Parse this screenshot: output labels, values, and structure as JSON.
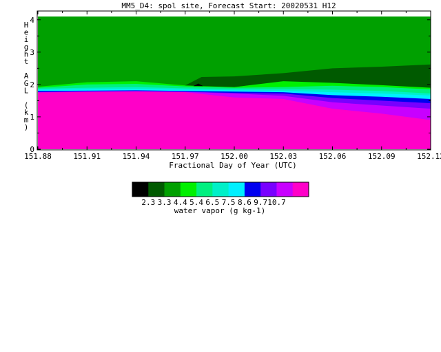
{
  "chart_data": {
    "type": "heatmap",
    "title": "MM5_D4: spol site,  Forecast Start: 20020531 H12",
    "xlabel": "Fractional Day of Year (UTC)",
    "ylabel": "Height AGL (km)",
    "xlim": [
      151.88,
      152.12
    ],
    "ylim": [
      0,
      4.25
    ],
    "x_ticks": [
      "151.88",
      "151.91",
      "151.94",
      "151.97",
      "152.00",
      "152.03",
      "152.06",
      "152.09",
      "152.12"
    ],
    "y_ticks": [
      "0",
      "1",
      "2",
      "3",
      "4"
    ],
    "x_times": [
      151.88,
      151.91,
      151.94,
      151.97,
      152.0,
      152.03,
      152.06,
      152.09,
      152.12
    ],
    "colorbar": {
      "label": "water vapor (g kg-1)",
      "ticks": [
        "2.3",
        "3.3",
        "4.4",
        "5.4",
        "6.5",
        "7.5",
        "8.6",
        "9.7",
        "10.7"
      ],
      "colors": [
        "#000000",
        "#005a00",
        "#00a000",
        "#00f000",
        "#00f080",
        "#00f0c8",
        "#00f0ff",
        "#0000f0",
        "#7800ff",
        "#c800ff",
        "#ff00c8"
      ]
    },
    "layers": [
      {
        "level": "9.7–10.7",
        "color": "#ff00c8",
        "top_km": [
          1.75,
          1.77,
          1.78,
          1.76,
          1.6,
          1.55,
          1.25,
          1.1,
          0.9
        ]
      },
      {
        "level": "8.6–9.7",
        "color": "#c800ff",
        "top_km": [
          1.76,
          1.78,
          1.79,
          1.77,
          1.72,
          1.65,
          1.45,
          1.35,
          1.25
        ]
      },
      {
        "level": "7.5–8.6",
        "color": "#7800ff",
        "top_km": [
          1.77,
          1.79,
          1.8,
          1.78,
          1.74,
          1.72,
          1.58,
          1.5,
          1.42
        ]
      },
      {
        "level": "6.5–7.5",
        "color": "#0000f0",
        "top_km": [
          1.8,
          1.81,
          1.82,
          1.8,
          1.78,
          1.76,
          1.67,
          1.62,
          1.55
        ]
      },
      {
        "level": "5.4–6.5",
        "color": "#00f0ff",
        "top_km": [
          1.84,
          1.85,
          1.86,
          1.84,
          1.82,
          1.8,
          1.76,
          1.72,
          1.66
        ]
      },
      {
        "level": "4.4–5.4",
        "color": "#00f0c8",
        "top_km": [
          1.87,
          1.9,
          1.92,
          1.88,
          1.86,
          1.86,
          1.84,
          1.8,
          1.72
        ]
      },
      {
        "level": "3.3–4.4",
        "color": "#00f080",
        "top_km": [
          1.9,
          2.0,
          2.02,
          1.94,
          1.9,
          1.92,
          1.96,
          1.92,
          1.85
        ]
      },
      {
        "level": "2.3–3.3",
        "color": "#00f000",
        "top_km": [
          1.93,
          2.07,
          2.1,
          1.97,
          1.92,
          2.12,
          2.2,
          2.15,
          2.1
        ]
      },
      {
        "level": "background",
        "color": "#00a000",
        "top_km": [
          4.1,
          4.1,
          4.1,
          4.1,
          4.1,
          4.1,
          4.1,
          4.1,
          4.1
        ]
      }
    ],
    "overlays": [
      {
        "level": "dark",
        "color": "#005a00",
        "x": [
          151.97,
          151.98,
          152.0,
          152.03,
          152.06,
          152.09,
          152.12
        ],
        "top_km": [
          1.97,
          2.23,
          2.25,
          2.35,
          2.5,
          2.55,
          2.62
        ],
        "bottom_km": [
          1.97,
          1.95,
          1.92,
          2.1,
          2.05,
          1.98,
          1.9
        ]
      },
      {
        "level": "darkest",
        "color": "#000000",
        "x": [
          151.975,
          151.978,
          151.981
        ],
        "top_km": [
          1.95,
          2.03,
          1.95
        ],
        "bottom_km": [
          1.95,
          1.95,
          1.95
        ]
      }
    ],
    "grid": false
  }
}
